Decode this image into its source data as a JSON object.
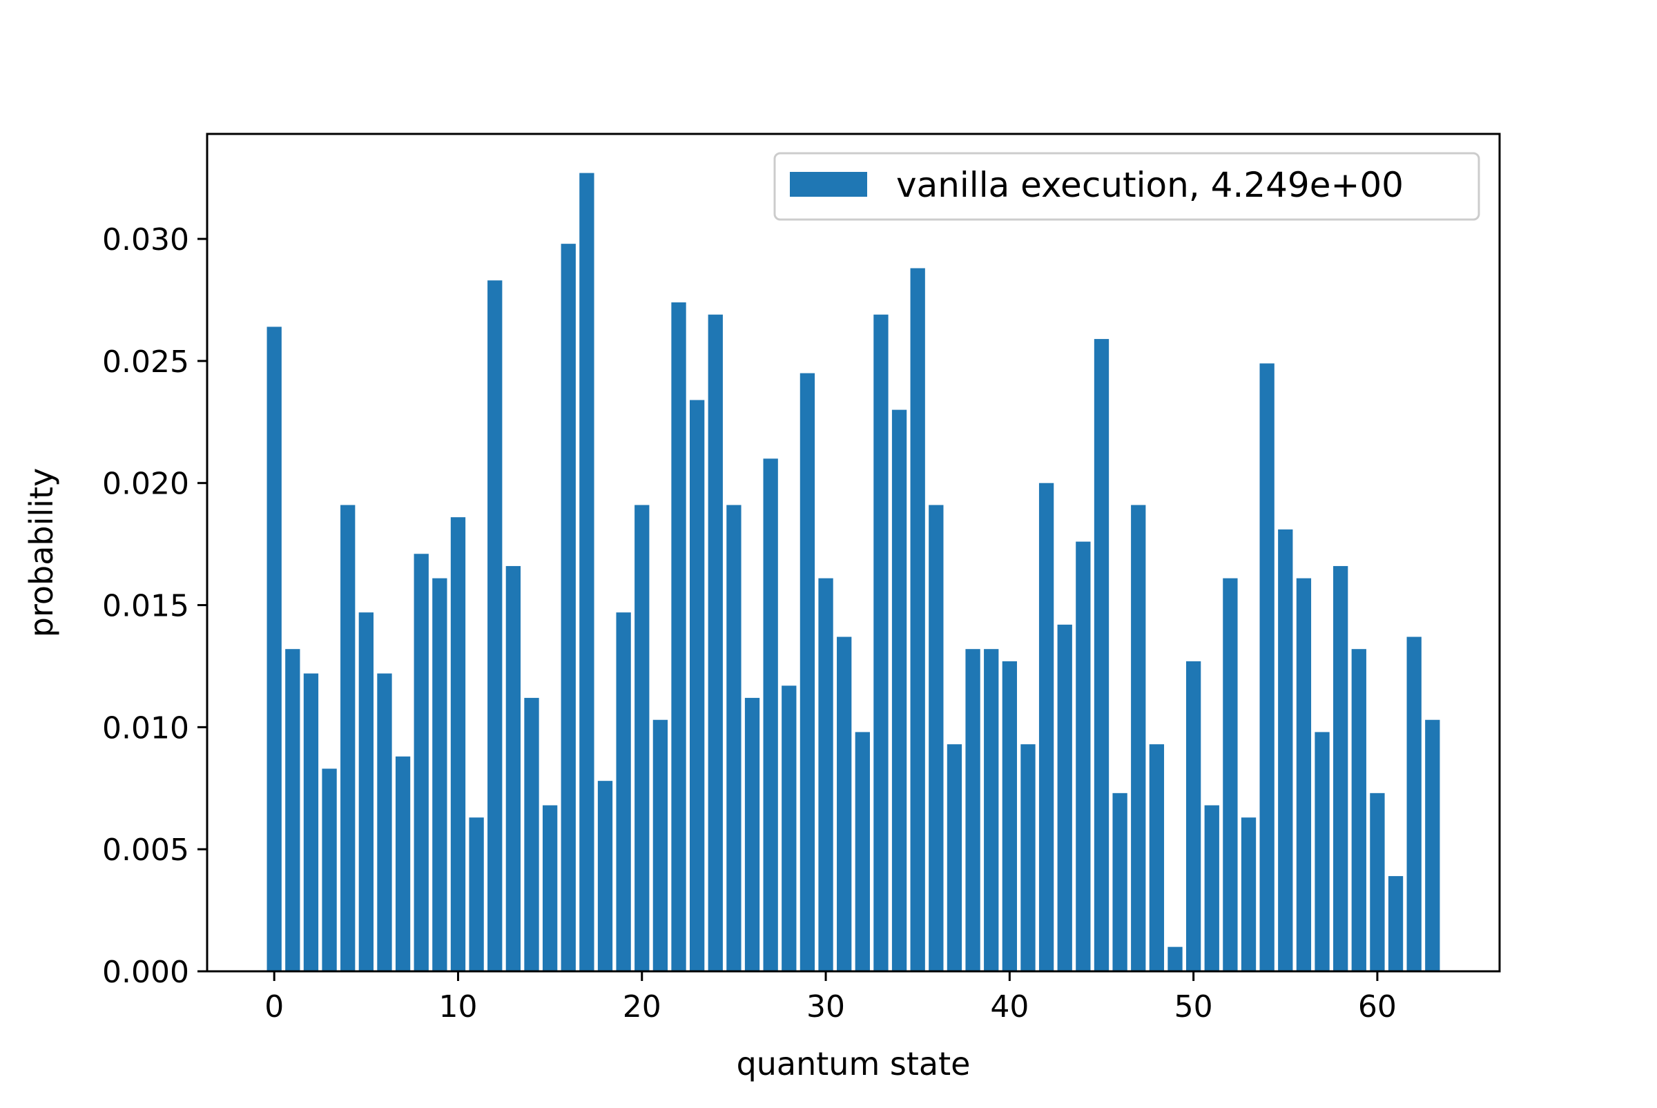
{
  "chart_data": {
    "type": "bar",
    "title": "",
    "xlabel": "quantum state",
    "ylabel": "probability",
    "xlim": [
      -3.65,
      66.65
    ],
    "ylim": [
      0,
      0.0343
    ],
    "xticks": [
      0,
      10,
      20,
      30,
      40,
      50,
      60
    ],
    "xtick_labels": [
      "0",
      "10",
      "20",
      "30",
      "40",
      "50",
      "60"
    ],
    "yticks": [
      0.0,
      0.005,
      0.01,
      0.015,
      0.02,
      0.025,
      0.03
    ],
    "ytick_labels": [
      "0.000",
      "0.005",
      "0.010",
      "0.015",
      "0.020",
      "0.025",
      "0.030"
    ],
    "grid": false,
    "legend_position": "top-right",
    "bar_color": "#1f77b4",
    "series": [
      {
        "name": "vanilla execution, 4.249e+00",
        "x": [
          0,
          1,
          2,
          3,
          4,
          5,
          6,
          7,
          8,
          9,
          10,
          11,
          12,
          13,
          14,
          15,
          16,
          17,
          18,
          19,
          20,
          21,
          22,
          23,
          24,
          25,
          26,
          27,
          28,
          29,
          30,
          31,
          32,
          33,
          34,
          35,
          36,
          37,
          38,
          39,
          40,
          41,
          42,
          43,
          44,
          45,
          46,
          47,
          48,
          49,
          50,
          51,
          52,
          53,
          54,
          55,
          56,
          57,
          58,
          59,
          60,
          61,
          62,
          63
        ],
        "values": [
          0.0264,
          0.0132,
          0.0122,
          0.0083,
          0.0191,
          0.0147,
          0.0122,
          0.0088,
          0.0171,
          0.0161,
          0.0186,
          0.0063,
          0.0283,
          0.0166,
          0.0112,
          0.0068,
          0.0298,
          0.0327,
          0.0078,
          0.0147,
          0.0191,
          0.0103,
          0.0274,
          0.0234,
          0.0269,
          0.0191,
          0.0112,
          0.021,
          0.0117,
          0.0245,
          0.0161,
          0.0137,
          0.0098,
          0.0269,
          0.023,
          0.0288,
          0.0191,
          0.0093,
          0.0132,
          0.0132,
          0.0127,
          0.0093,
          0.02,
          0.0142,
          0.0176,
          0.0259,
          0.0073,
          0.0191,
          0.0093,
          0.001,
          0.0127,
          0.0068,
          0.0161,
          0.0063,
          0.0249,
          0.0181,
          0.0161,
          0.0098,
          0.0166,
          0.0132,
          0.0073,
          0.0039,
          0.0137,
          0.0103
        ]
      }
    ]
  }
}
